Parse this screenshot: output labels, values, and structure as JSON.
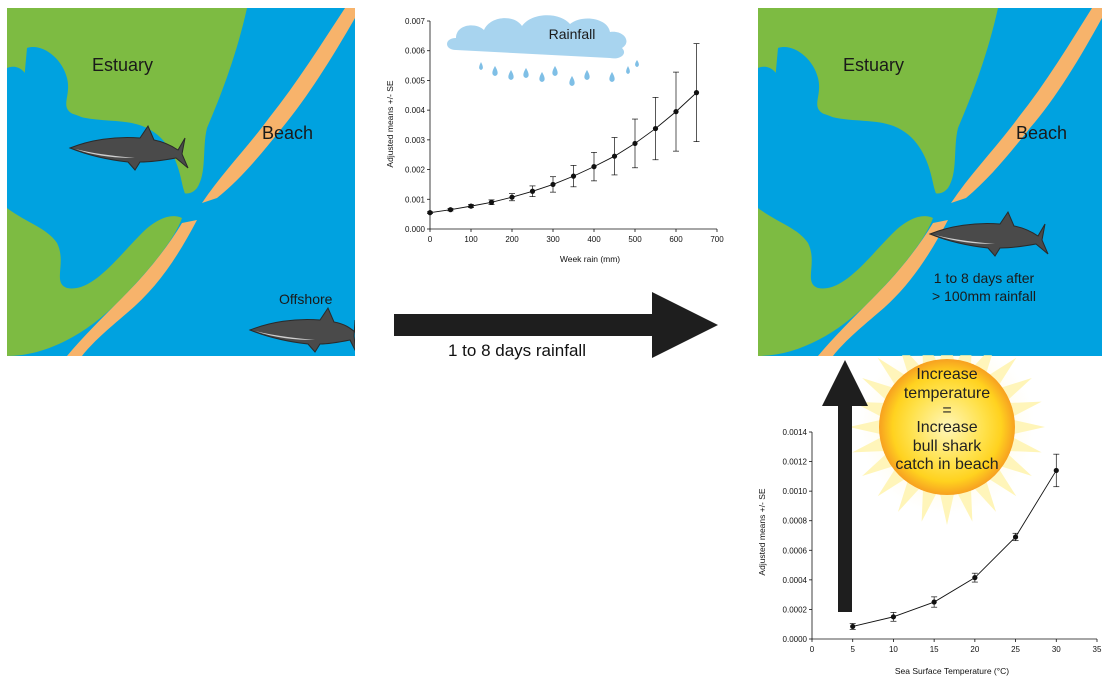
{
  "left_map": {
    "estuary_label": "Estuary",
    "beach_label": "Beach",
    "offshore_label": "Offshore"
  },
  "right_map": {
    "estuary_label": "Estuary",
    "beach_label": "Beach",
    "note_line1": "1 to 8 days after",
    "note_line2": "> 100mm rainfall"
  },
  "cloud_label": "Rainfall",
  "horizontal_arrow_label": "1 to 8 days rainfall",
  "sun": {
    "line1": "Increase",
    "line2": "temperature",
    "line3": "=",
    "line4": "Increase",
    "line5": "bull shark",
    "line6": "catch in beach"
  },
  "colors": {
    "water": "#00a2e0",
    "land": "#7dbb42",
    "sand": "#f7b36b",
    "arrow": "#1e1e1e",
    "cloud": "#a8d4ef",
    "sun": "#ffe14a"
  },
  "chart_data": [
    {
      "type": "line",
      "xlabel": "Week rain (mm)",
      "ylabel": "Adjusted means +/- SE",
      "xlim": [
        0,
        700
      ],
      "ylim": [
        0,
        0.007
      ],
      "xticks": [
        "0",
        "100",
        "200",
        "300",
        "400",
        "500",
        "600",
        "700"
      ],
      "yticks": [
        "0.000",
        "0.001",
        "0.002",
        "0.003",
        "0.004",
        "0.005",
        "0.006",
        "0.007"
      ],
      "x": [
        0,
        50,
        100,
        150,
        200,
        250,
        300,
        350,
        400,
        450,
        500,
        550,
        600,
        650
      ],
      "y": [
        0.00055,
        0.00065,
        0.00077,
        0.0009,
        0.00107,
        0.00127,
        0.0015,
        0.00178,
        0.0021,
        0.00245,
        0.00288,
        0.00338,
        0.00395,
        0.00459
      ],
      "err": [
        3e-05,
        4e-05,
        5e-05,
        8e-05,
        0.00012,
        0.00018,
        0.00026,
        0.00036,
        0.00048,
        0.00063,
        0.00082,
        0.00105,
        0.00133,
        0.00165
      ],
      "grid": false
    },
    {
      "type": "line",
      "xlabel": "Sea Surface Temperature (°C)",
      "ylabel": "Adjusted means +/- SE",
      "xlim": [
        0,
        35
      ],
      "ylim": [
        0,
        0.0014
      ],
      "xticks": [
        "0",
        "5",
        "10",
        "15",
        "20",
        "25",
        "30",
        "35"
      ],
      "yticks": [
        "0.0000",
        "0.0002",
        "0.0004",
        "0.0006",
        "0.0008",
        "0.0010",
        "0.0012",
        "0.0014"
      ],
      "x": [
        5,
        10,
        15,
        20,
        25,
        30
      ],
      "y": [
        8.5e-05,
        0.00015,
        0.00025,
        0.000415,
        0.00069,
        0.00114
      ],
      "err": [
        2e-05,
        3e-05,
        3.5e-05,
        3e-05,
        2.5e-05,
        0.00011
      ],
      "grid": false
    }
  ]
}
